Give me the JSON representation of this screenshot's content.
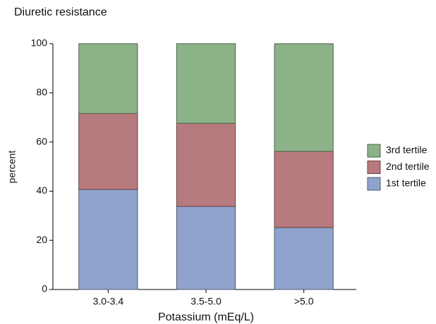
{
  "chart_data": {
    "type": "stacked_bar",
    "title": "Diuretic resistance",
    "x_label": "Potassium (mEq/L)",
    "y_label": "percent",
    "categories": [
      "3.0-3.4",
      "3.5-5.0",
      ">5.0"
    ],
    "series": [
      {
        "name": "1st tertile",
        "color": "#8fa3cc",
        "values": [
          40.7,
          33.8,
          25.2
        ]
      },
      {
        "name": "2nd tertile",
        "color": "#b77a7e",
        "values": [
          30.9,
          33.8,
          31.0
        ]
      },
      {
        "name": "3rd tertile",
        "color": "#8cb388",
        "values": [
          28.4,
          32.4,
          43.8
        ]
      }
    ],
    "ylim": [
      0,
      100
    ],
    "yticks": [
      0,
      20,
      40,
      60,
      80,
      100
    ],
    "legend": "right"
  }
}
